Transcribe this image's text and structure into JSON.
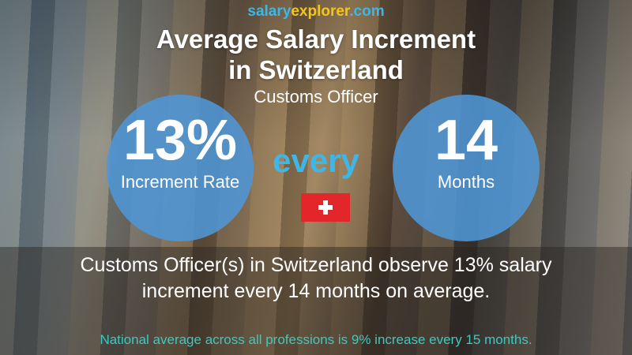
{
  "brand": {
    "part1": "salary",
    "part2": "explorer",
    "part3": ".com"
  },
  "header": {
    "title_line1": "Average Salary Increment",
    "title_line2": "in Switzerland",
    "subtitle": "Customs Officer"
  },
  "increment": {
    "value": "13%",
    "label": "Increment Rate"
  },
  "connector": "every",
  "period": {
    "value": "14",
    "label": "Months"
  },
  "flag": {
    "country": "Switzerland",
    "icon": "swiss-flag-icon",
    "colors": {
      "red": "#e3262a",
      "white": "#ffffff"
    }
  },
  "description": {
    "line1": "Customs Officer(s) in Switzerland observe 13% salary",
    "line2": "increment every 14 months on average."
  },
  "national_average": "National average across all professions is 9% increase every 15 months.",
  "colors": {
    "circle": "#4f96d6",
    "accent_blue": "#3fb7e6",
    "accent_yellow": "#f5c518",
    "teal": "#3dc9c0"
  }
}
